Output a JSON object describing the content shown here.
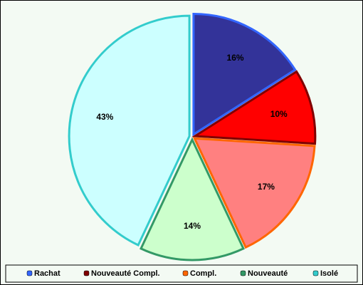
{
  "chart_data": {
    "type": "pie",
    "categories": [
      "Rachat",
      "Nouveauté Compl.",
      "Compl.",
      "Nouveauté",
      "Isolé"
    ],
    "values": [
      16,
      10,
      17,
      14,
      43
    ],
    "value_labels": [
      "16%",
      "10%",
      "17%",
      "14%",
      "43%"
    ],
    "colors": [
      "#333399",
      "#ff0000",
      "#ff8080",
      "#ccffcc",
      "#ccffff"
    ],
    "border_colors": [
      "#3366ff",
      "#800000",
      "#ff6600",
      "#339966",
      "#33cccc"
    ],
    "legend": "bottom"
  }
}
